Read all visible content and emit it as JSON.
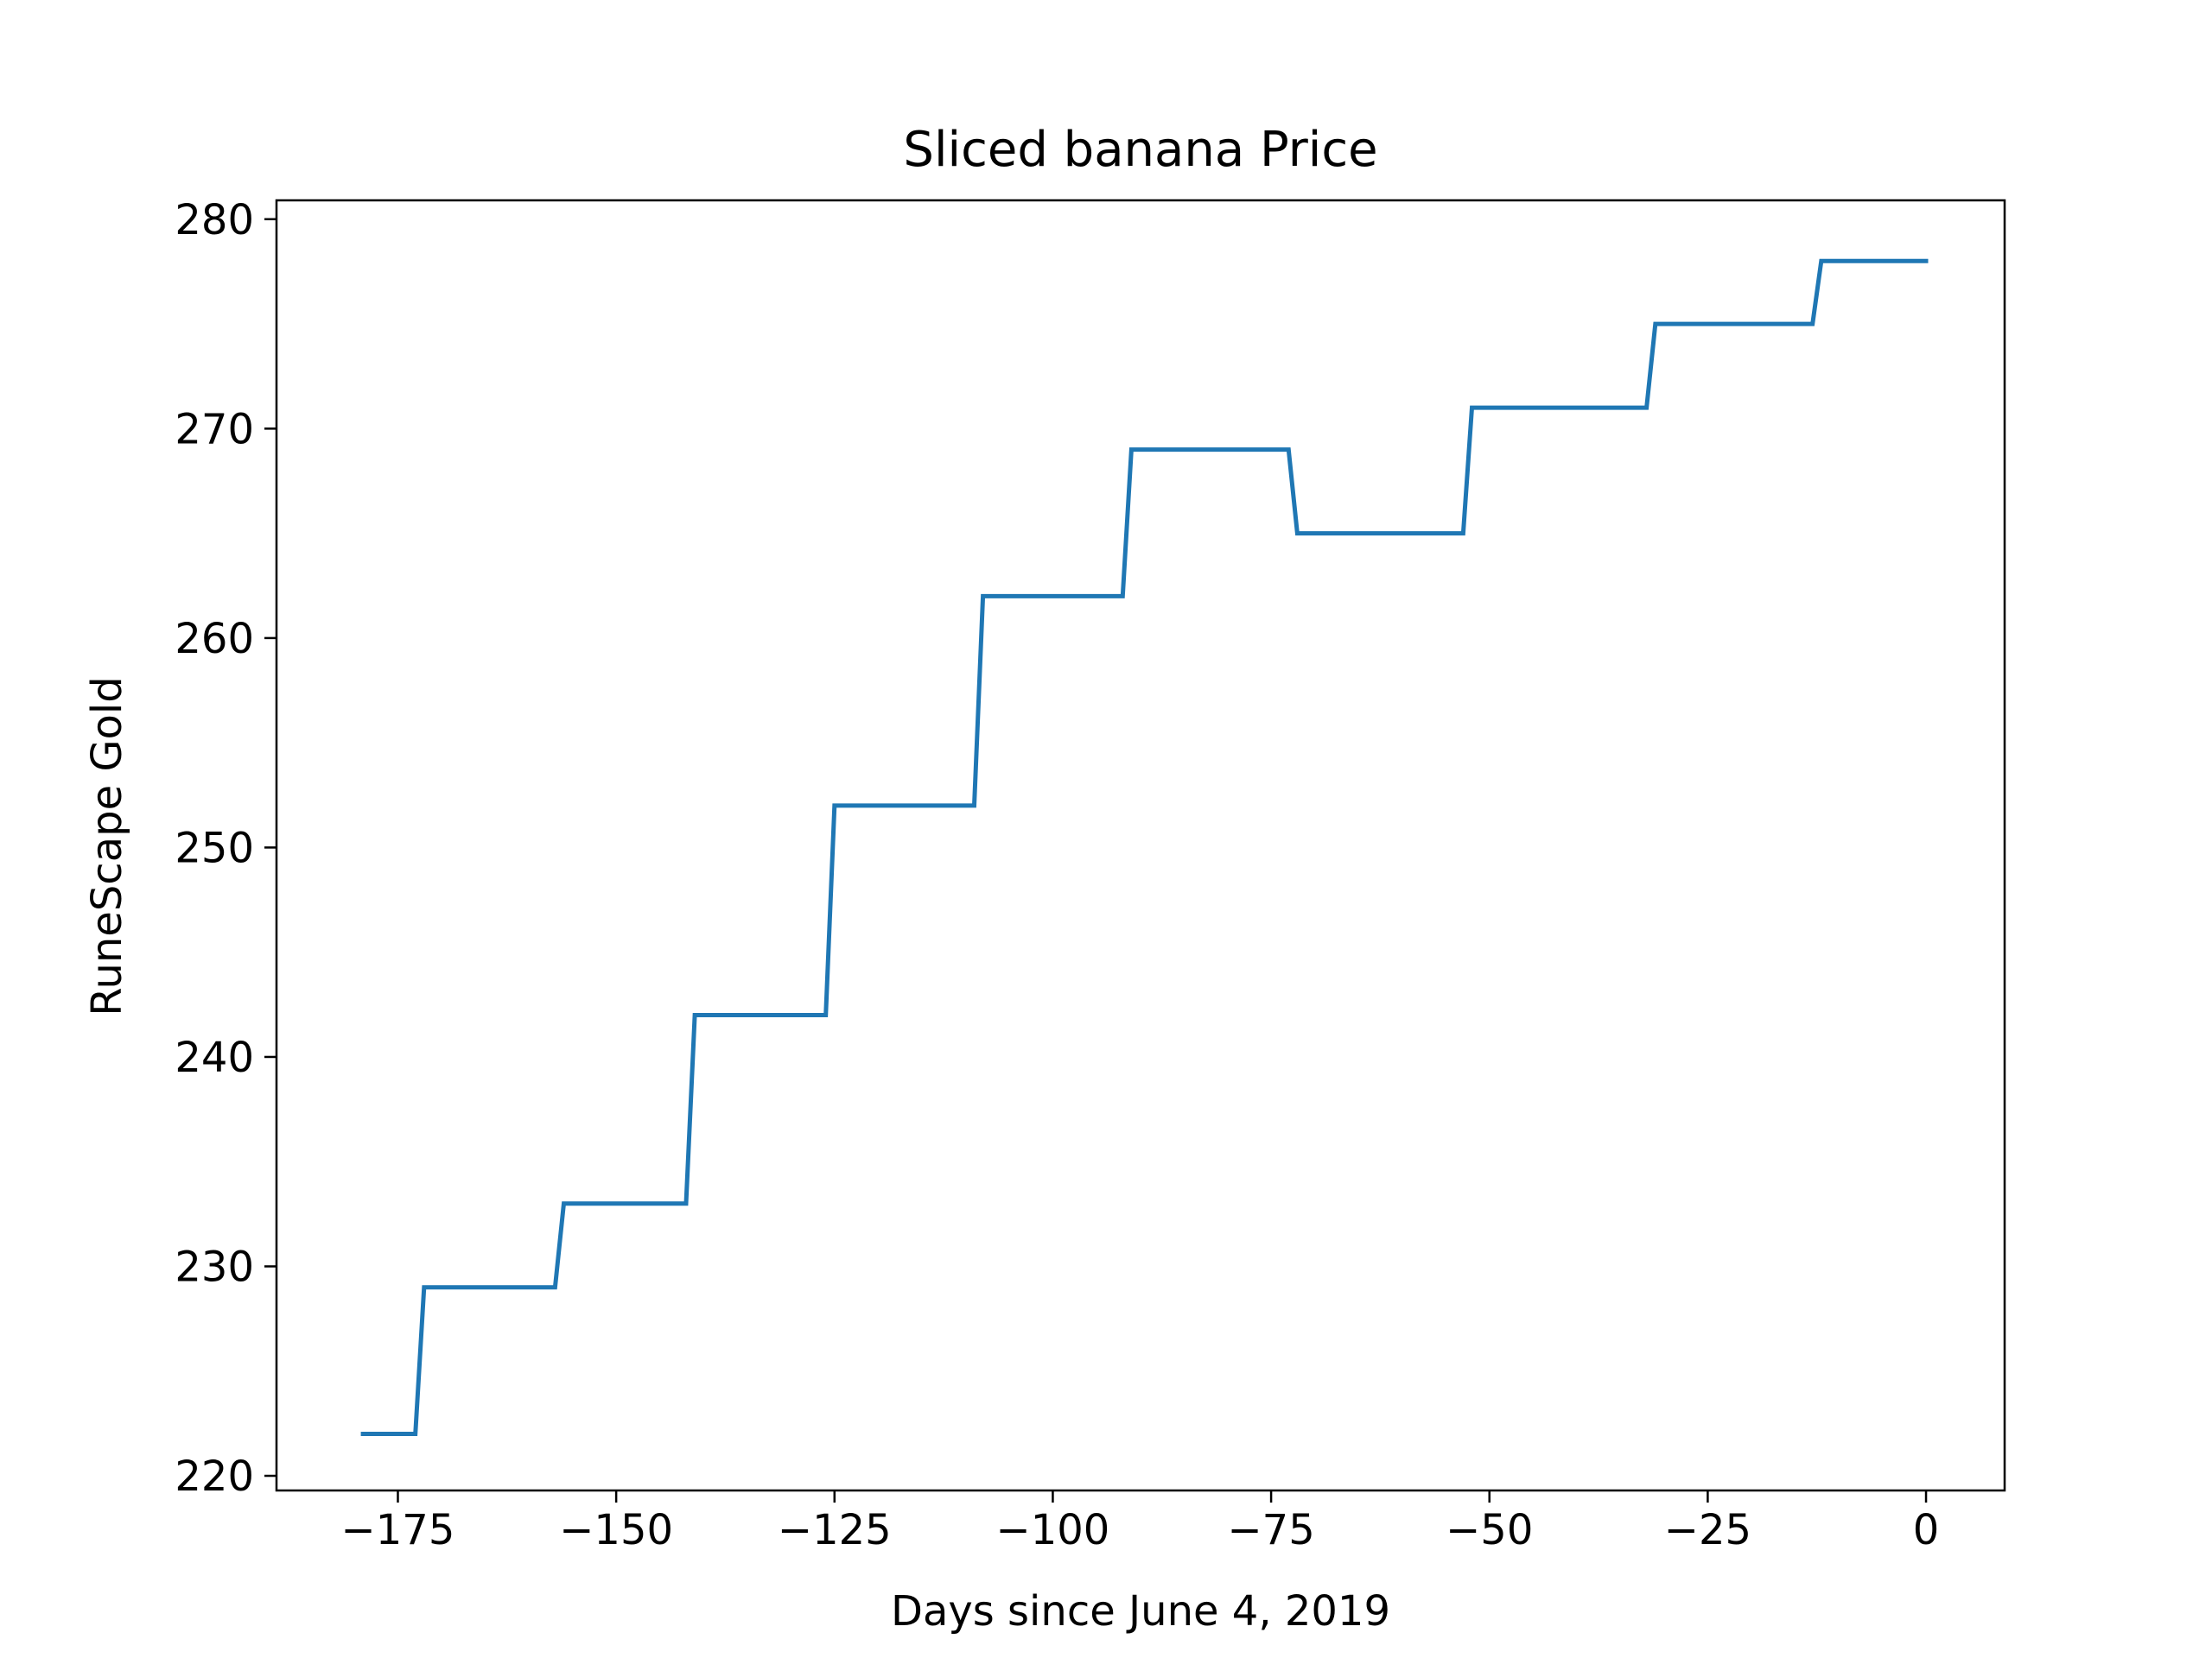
{
  "chart_data": {
    "type": "line",
    "title": "Sliced banana Price",
    "xlabel": "Days since June 4, 2019",
    "ylabel": "RuneScape Gold",
    "xlim": [
      -188.9,
      9
    ],
    "ylim": [
      219.3,
      280.9
    ],
    "xticks": [
      -175,
      -150,
      -125,
      -100,
      -75,
      -50,
      -25,
      0
    ],
    "xtick_labels": [
      "−175",
      "−150",
      "−125",
      "−100",
      "−75",
      "−50",
      "−25",
      "0"
    ],
    "yticks": [
      220,
      230,
      240,
      250,
      260,
      270,
      280
    ],
    "ytick_labels": [
      "220",
      "230",
      "240",
      "250",
      "260",
      "270",
      "280"
    ],
    "grid": false,
    "series": [
      {
        "color": "#1f77b4",
        "x": [
          -179,
          -173,
          -172,
          -157,
          -156,
          -142,
          -141,
          -126,
          -125,
          -109,
          -108,
          -92,
          -91,
          -73,
          -72,
          -53,
          -52,
          -32,
          -31,
          -13,
          -12,
          0
        ],
        "y": [
          222,
          222,
          229,
          229,
          233,
          233,
          242,
          242,
          252,
          252,
          262,
          262,
          269,
          269,
          265,
          265,
          271,
          271,
          275,
          275,
          278,
          278
        ]
      }
    ]
  }
}
